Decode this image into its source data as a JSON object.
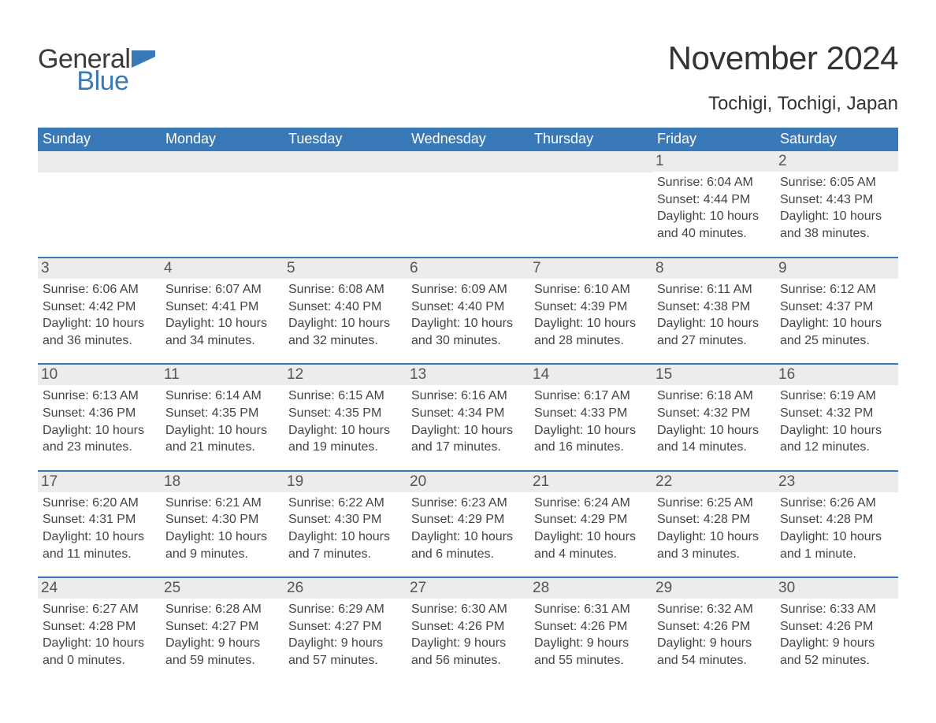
{
  "logo": {
    "general": "General",
    "blue": "Blue",
    "icon_color": "#3a79b7"
  },
  "title": "November 2024",
  "location": "Tochigi, Tochigi, Japan",
  "colors": {
    "header_bg": "#3a79b7",
    "header_text": "#ffffff",
    "daynum_bg": "#ececec",
    "text": "#3a3a3a",
    "border": "#3a79b7"
  },
  "typography": {
    "title_fontsize": 42,
    "location_fontsize": 24,
    "weekday_fontsize": 18,
    "daynum_fontsize": 19,
    "info_fontsize": 16
  },
  "weekdays": [
    "Sunday",
    "Monday",
    "Tuesday",
    "Wednesday",
    "Thursday",
    "Friday",
    "Saturday"
  ],
  "labels": {
    "sunrise": "Sunrise:",
    "sunset": "Sunset:",
    "daylight": "Daylight:"
  },
  "weeks": [
    [
      {
        "empty": true
      },
      {
        "empty": true
      },
      {
        "empty": true
      },
      {
        "empty": true
      },
      {
        "empty": true
      },
      {
        "n": "1",
        "sunrise": "6:04 AM",
        "sunset": "4:44 PM",
        "daylight": "10 hours and 40 minutes."
      },
      {
        "n": "2",
        "sunrise": "6:05 AM",
        "sunset": "4:43 PM",
        "daylight": "10 hours and 38 minutes."
      }
    ],
    [
      {
        "n": "3",
        "sunrise": "6:06 AM",
        "sunset": "4:42 PM",
        "daylight": "10 hours and 36 minutes."
      },
      {
        "n": "4",
        "sunrise": "6:07 AM",
        "sunset": "4:41 PM",
        "daylight": "10 hours and 34 minutes."
      },
      {
        "n": "5",
        "sunrise": "6:08 AM",
        "sunset": "4:40 PM",
        "daylight": "10 hours and 32 minutes."
      },
      {
        "n": "6",
        "sunrise": "6:09 AM",
        "sunset": "4:40 PM",
        "daylight": "10 hours and 30 minutes."
      },
      {
        "n": "7",
        "sunrise": "6:10 AM",
        "sunset": "4:39 PM",
        "daylight": "10 hours and 28 minutes."
      },
      {
        "n": "8",
        "sunrise": "6:11 AM",
        "sunset": "4:38 PM",
        "daylight": "10 hours and 27 minutes."
      },
      {
        "n": "9",
        "sunrise": "6:12 AM",
        "sunset": "4:37 PM",
        "daylight": "10 hours and 25 minutes."
      }
    ],
    [
      {
        "n": "10",
        "sunrise": "6:13 AM",
        "sunset": "4:36 PM",
        "daylight": "10 hours and 23 minutes."
      },
      {
        "n": "11",
        "sunrise": "6:14 AM",
        "sunset": "4:35 PM",
        "daylight": "10 hours and 21 minutes."
      },
      {
        "n": "12",
        "sunrise": "6:15 AM",
        "sunset": "4:35 PM",
        "daylight": "10 hours and 19 minutes."
      },
      {
        "n": "13",
        "sunrise": "6:16 AM",
        "sunset": "4:34 PM",
        "daylight": "10 hours and 17 minutes."
      },
      {
        "n": "14",
        "sunrise": "6:17 AM",
        "sunset": "4:33 PM",
        "daylight": "10 hours and 16 minutes."
      },
      {
        "n": "15",
        "sunrise": "6:18 AM",
        "sunset": "4:32 PM",
        "daylight": "10 hours and 14 minutes."
      },
      {
        "n": "16",
        "sunrise": "6:19 AM",
        "sunset": "4:32 PM",
        "daylight": "10 hours and 12 minutes."
      }
    ],
    [
      {
        "n": "17",
        "sunrise": "6:20 AM",
        "sunset": "4:31 PM",
        "daylight": "10 hours and 11 minutes."
      },
      {
        "n": "18",
        "sunrise": "6:21 AM",
        "sunset": "4:30 PM",
        "daylight": "10 hours and 9 minutes."
      },
      {
        "n": "19",
        "sunrise": "6:22 AM",
        "sunset": "4:30 PM",
        "daylight": "10 hours and 7 minutes."
      },
      {
        "n": "20",
        "sunrise": "6:23 AM",
        "sunset": "4:29 PM",
        "daylight": "10 hours and 6 minutes."
      },
      {
        "n": "21",
        "sunrise": "6:24 AM",
        "sunset": "4:29 PM",
        "daylight": "10 hours and 4 minutes."
      },
      {
        "n": "22",
        "sunrise": "6:25 AM",
        "sunset": "4:28 PM",
        "daylight": "10 hours and 3 minutes."
      },
      {
        "n": "23",
        "sunrise": "6:26 AM",
        "sunset": "4:28 PM",
        "daylight": "10 hours and 1 minute."
      }
    ],
    [
      {
        "n": "24",
        "sunrise": "6:27 AM",
        "sunset": "4:28 PM",
        "daylight": "10 hours and 0 minutes."
      },
      {
        "n": "25",
        "sunrise": "6:28 AM",
        "sunset": "4:27 PM",
        "daylight": "9 hours and 59 minutes."
      },
      {
        "n": "26",
        "sunrise": "6:29 AM",
        "sunset": "4:27 PM",
        "daylight": "9 hours and 57 minutes."
      },
      {
        "n": "27",
        "sunrise": "6:30 AM",
        "sunset": "4:26 PM",
        "daylight": "9 hours and 56 minutes."
      },
      {
        "n": "28",
        "sunrise": "6:31 AM",
        "sunset": "4:26 PM",
        "daylight": "9 hours and 55 minutes."
      },
      {
        "n": "29",
        "sunrise": "6:32 AM",
        "sunset": "4:26 PM",
        "daylight": "9 hours and 54 minutes."
      },
      {
        "n": "30",
        "sunrise": "6:33 AM",
        "sunset": "4:26 PM",
        "daylight": "9 hours and 52 minutes."
      }
    ]
  ]
}
